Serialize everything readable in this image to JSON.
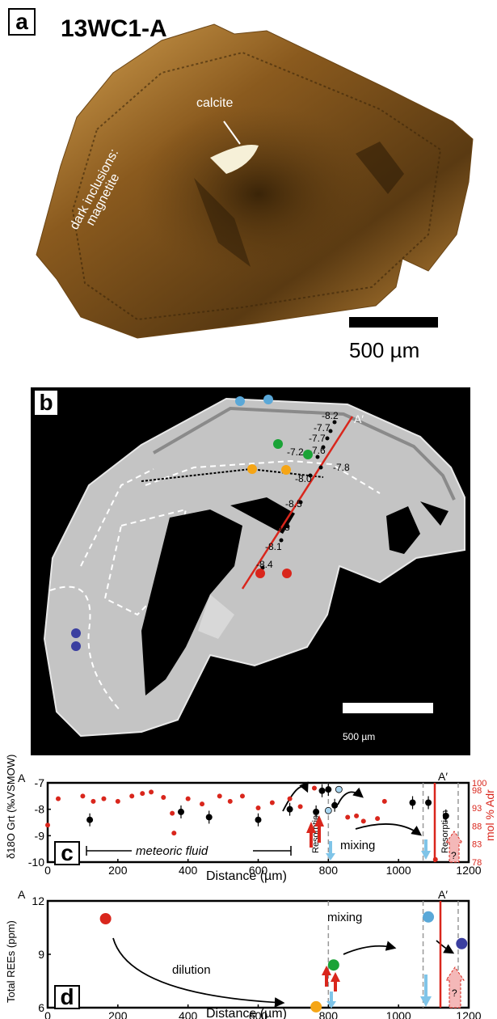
{
  "panel_a": {
    "label": "a",
    "sample_id": "13WC1-A",
    "annotation_calcite": "calcite",
    "annotation_inclusions_line1": "dark inclusions:",
    "annotation_inclusions_line2": "magnetite",
    "scale_bar_text": "500 µm"
  },
  "panel_b": {
    "label": "b",
    "profile_end_label": "A′",
    "scale_bar_text": "500 µm",
    "d18O_labels": [
      "-8.2",
      "-7.7",
      "-7.7",
      "-7.6",
      "-7.2",
      "-7.8",
      "-8.0",
      "-8.5",
      "-8.3",
      "-8.1",
      "-8.4"
    ],
    "colors": {
      "profile_line": "#d9261c",
      "spot_lightblue": "#5aa8d8",
      "spot_green": "#1aa336",
      "spot_orange": "#f5a516",
      "spot_red": "#d9261c",
      "spot_blue": "#3b3fa0"
    }
  },
  "chart_data": [
    {
      "type": "scatter",
      "panel": "c",
      "left_corner_label": "A",
      "right_corner_label": "A′",
      "xlabel": "Distance (µm)",
      "ylabel": "δ18O Grt (‰VSMOW)",
      "ylabel_right": "mol % Adr",
      "xlim": [
        0,
        1200
      ],
      "ylim": [
        -10,
        -7
      ],
      "ylim_right": [
        78,
        100
      ],
      "xticks": [
        "0",
        "200",
        "400",
        "600",
        "800",
        "1000",
        "1200"
      ],
      "yticks": [
        "-7",
        "-8",
        "-9",
        "-10"
      ],
      "yticks_right": [
        "100",
        "98",
        "93",
        "88",
        "83",
        "78"
      ],
      "annotations": [
        "meteoric fluid",
        "mixing",
        "Resorption",
        "Resorption",
        "?"
      ],
      "series": [
        {
          "color": "#000000",
          "points": [
            {
              "x": 120,
              "y": -8.4
            },
            {
              "x": 380,
              "y": -8.1
            },
            {
              "x": 460,
              "y": -8.3
            },
            {
              "x": 600,
              "y": -8.4
            },
            {
              "x": 690,
              "y": -8.0
            },
            {
              "x": 765,
              "y": -8.1
            },
            {
              "x": 782,
              "y": -7.3
            },
            {
              "x": 800,
              "y": -7.25
            },
            {
              "x": 818,
              "y": -7.85
            },
            {
              "x": 1040,
              "y": -7.75
            },
            {
              "x": 1085,
              "y": -7.75
            },
            {
              "x": 1135,
              "y": -8.25
            }
          ]
        },
        {
          "color": "#d9261c",
          "points": [
            {
              "x": 0,
              "y": -8.6
            },
            {
              "x": 30,
              "y": -7.6
            },
            {
              "x": 100,
              "y": -7.5
            },
            {
              "x": 130,
              "y": -7.7
            },
            {
              "x": 160,
              "y": -7.6
            },
            {
              "x": 200,
              "y": -7.7
            },
            {
              "x": 240,
              "y": -7.5
            },
            {
              "x": 270,
              "y": -7.4
            },
            {
              "x": 295,
              "y": -7.35
            },
            {
              "x": 330,
              "y": -7.55
            },
            {
              "x": 355,
              "y": -8.15
            },
            {
              "x": 360,
              "y": -8.9
            },
            {
              "x": 400,
              "y": -7.6
            },
            {
              "x": 440,
              "y": -7.8
            },
            {
              "x": 490,
              "y": -7.5
            },
            {
              "x": 520,
              "y": -7.7
            },
            {
              "x": 555,
              "y": -7.5
            },
            {
              "x": 600,
              "y": -7.95
            },
            {
              "x": 640,
              "y": -7.75
            },
            {
              "x": 690,
              "y": -7.6
            },
            {
              "x": 720,
              "y": -7.9
            },
            {
              "x": 760,
              "y": -7.2
            },
            {
              "x": 855,
              "y": -8.3
            },
            {
              "x": 880,
              "y": -8.25
            },
            {
              "x": 900,
              "y": -8.45
            },
            {
              "x": 940,
              "y": -8.35
            },
            {
              "x": 960,
              "y": -7.7
            },
            {
              "x": 1105,
              "y": -9.9
            }
          ]
        },
        {
          "color": "#a9d6f0",
          "points": [
            {
              "x": 800,
              "y": -8.05
            },
            {
              "x": 830,
              "y": -7.25
            }
          ]
        }
      ]
    },
    {
      "type": "scatter",
      "panel": "d",
      "left_corner_label": "A",
      "right_corner_label": "A′",
      "xlabel": "Distance (µm)",
      "ylabel": "Total REEs (ppm)",
      "xlim": [
        0,
        1200
      ],
      "ylim": [
        6,
        12
      ],
      "xticks": [
        "0",
        "200",
        "400",
        "600",
        "800",
        "1000",
        "1200"
      ],
      "yticks": [
        "12",
        "9",
        "6"
      ],
      "annotations": [
        "dilution",
        "mixing",
        "?"
      ],
      "series": [
        {
          "points": [
            {
              "x": 165,
              "y": 11,
              "color": "#d9261c"
            },
            {
              "x": 765,
              "y": 6.05,
              "color": "#f5a516"
            },
            {
              "x": 815,
              "y": 8.4,
              "color": "#1aa336"
            },
            {
              "x": 1085,
              "y": 11.1,
              "color": "#5aa8d8"
            },
            {
              "x": 1180,
              "y": 9.6,
              "color": "#3b3fa0"
            }
          ]
        }
      ]
    }
  ]
}
